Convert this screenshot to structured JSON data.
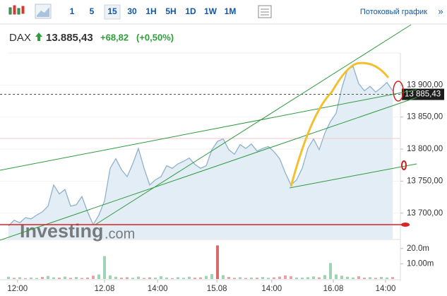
{
  "toolbar": {
    "intervals": [
      "1",
      "5",
      "15",
      "30",
      "1H",
      "5H",
      "1D",
      "1W",
      "1M"
    ],
    "stream_label": "Потоковый график",
    "more": "»"
  },
  "quote": {
    "symbol": "DAX",
    "price": "13.885,43",
    "change": "+68,82",
    "change_pct": "(+0,50%)"
  },
  "watermark": {
    "brand": "Investing",
    "suffix": ".com"
  },
  "chart_data": [
    {
      "type": "line",
      "color": "#8fb1cc",
      "fill": "#e3edf5",
      "grid": true,
      "x": [
        0,
        1,
        2,
        3,
        4,
        5,
        6,
        7,
        8,
        9,
        10,
        11,
        12,
        13,
        14,
        15,
        16,
        17,
        18,
        19,
        20,
        21,
        22,
        23,
        24,
        25,
        26,
        27,
        28,
        29,
        30,
        31,
        32,
        33,
        34,
        35,
        36,
        37,
        38,
        39,
        40,
        41,
        42,
        43,
        44,
        45,
        46,
        47,
        48,
        49,
        50,
        51,
        52,
        53,
        54,
        55,
        56,
        57,
        58,
        59,
        60,
        61,
        62,
        63,
        64,
        65,
        66,
        67,
        68
      ],
      "values": [
        13680,
        13689,
        13685,
        13693,
        13691,
        13697,
        13702,
        13711,
        13744,
        13730,
        13737,
        13711,
        13713,
        13726,
        13702,
        13682,
        13697,
        13719,
        13770,
        13785,
        13768,
        13757,
        13777,
        13801,
        13770,
        13744,
        13752,
        13757,
        13774,
        13770,
        13777,
        13781,
        13786,
        13776,
        13770,
        13774,
        13799,
        13812,
        13816,
        13799,
        13792,
        13807,
        13801,
        13808,
        13797,
        13801,
        13804,
        13796,
        13785,
        13763,
        13744,
        13752,
        13770,
        13801,
        13816,
        13799,
        13825,
        13843,
        13856,
        13895,
        13924,
        13929,
        13902,
        13891,
        13898,
        13889,
        13896,
        13904,
        13891
      ],
      "xlim": [
        0,
        68
      ],
      "ylim": [
        13660,
        13950
      ],
      "xticks": [
        {
          "value": 1.6,
          "label": "12:00"
        },
        {
          "value": 17,
          "label": "12.08"
        },
        {
          "value": 26.4,
          "label": "14:00"
        },
        {
          "value": 36.9,
          "label": "15.08"
        },
        {
          "value": 46.6,
          "label": "14:00"
        },
        {
          "value": 57.5,
          "label": "16.08"
        },
        {
          "value": 66.75,
          "label": "14:00"
        }
      ],
      "yticks": [
        {
          "value": 13700,
          "label": "13 700,00"
        },
        {
          "value": 13750,
          "label": "13 750,00"
        },
        {
          "value": 13800,
          "label": "13 800,00"
        },
        {
          "value": 13850,
          "label": "13 850,00"
        },
        {
          "value": 13900,
          "label": "13 900,00"
        }
      ],
      "last_price": {
        "value": 13885.43,
        "label": "13 885,43"
      }
    },
    {
      "type": "bar",
      "x": [
        0,
        1,
        2,
        3,
        4,
        5,
        6,
        7,
        8,
        9,
        10,
        11,
        12,
        13,
        14,
        15,
        16,
        17,
        18,
        19,
        20,
        21,
        22,
        23,
        24,
        25,
        26,
        27,
        28,
        29,
        30,
        31,
        32,
        33,
        34,
        35,
        36,
        37,
        38,
        39,
        40,
        41,
        42,
        43,
        44,
        45,
        46,
        47,
        48,
        49,
        50,
        51,
        52,
        53,
        54,
        55,
        56,
        57,
        58,
        59,
        60,
        61,
        62,
        63,
        64,
        65,
        66,
        67,
        68
      ],
      "values": [
        1.5,
        0.8,
        1.2,
        0.6,
        1.0,
        0.7,
        1.4,
        2.0,
        1.1,
        0.9,
        1.6,
        0.8,
        1.3,
        0.7,
        1.0,
        2.2,
        3.0,
        15,
        2.4,
        1.5,
        0.9,
        1.2,
        0.8,
        1.6,
        0.7,
        1.1,
        0.9,
        1.8,
        1.0,
        0.6,
        1.2,
        0.8,
        1.5,
        0.9,
        1.1,
        2.0,
        3.2,
        22,
        2.5,
        1.4,
        0.8,
        1.2,
        0.7,
        1.0,
        0.9,
        1.3,
        0.8,
        1.1,
        1.6,
        2.4,
        1.8,
        1.0,
        0.9,
        1.2,
        1.7,
        1.1,
        2.6,
        10.5,
        3.0,
        2.2,
        1.5,
        1.0,
        1.8,
        0.9,
        1.2,
        0.8,
        1.4,
        1.0,
        1.3
      ],
      "colors": [
        "#9fd3b3",
        "#e7a3a3",
        "#9fd3b3",
        "#e7a3a3",
        "#9fd3b3",
        "#9fd3b3",
        "#e7a3a3",
        "#9fd3b3",
        "#9fd3b3",
        "#e7a3a3",
        "#9fd3b3",
        "#e7a3a3",
        "#9fd3b3",
        "#e7a3a3",
        "#e7a3a3",
        "#e7a3a3",
        "#9fd3b3",
        "#9fd3b3",
        "#9fd3b3",
        "#9fd3b3",
        "#e7a3a3",
        "#e7a3a3",
        "#9fd3b3",
        "#9fd3b3",
        "#e7a3a3",
        "#e7a3a3",
        "#9fd3b3",
        "#9fd3b3",
        "#9fd3b3",
        "#e7a3a3",
        "#9fd3b3",
        "#9fd3b3",
        "#9fd3b3",
        "#e7a3a3",
        "#e7a3a3",
        "#9fd3b3",
        "#9fd3b3",
        "#d96a6a",
        "#9fd3b3",
        "#e7a3a3",
        "#e7a3a3",
        "#9fd3b3",
        "#e7a3a3",
        "#9fd3b3",
        "#e7a3a3",
        "#9fd3b3",
        "#9fd3b3",
        "#e7a3a3",
        "#e7a3a3",
        "#e7a3a3",
        "#e7a3a3",
        "#9fd3b3",
        "#9fd3b3",
        "#9fd3b3",
        "#9fd3b3",
        "#e7a3a3",
        "#9fd3b3",
        "#9fd3b3",
        "#9fd3b3",
        "#9fd3b3",
        "#9fd3b3",
        "#9fd3b3",
        "#e7a3a3",
        "#e7a3a3",
        "#9fd3b3",
        "#e7a3a3",
        "#9fd3b3",
        "#9fd3b3",
        "#e7a3a3"
      ],
      "xlim": [
        0,
        68
      ],
      "ylim": [
        0,
        24.5
      ],
      "yticks": [
        {
          "value": 10,
          "label": "10.00m"
        },
        {
          "value": 20,
          "label": "20.0m"
        }
      ]
    }
  ]
}
